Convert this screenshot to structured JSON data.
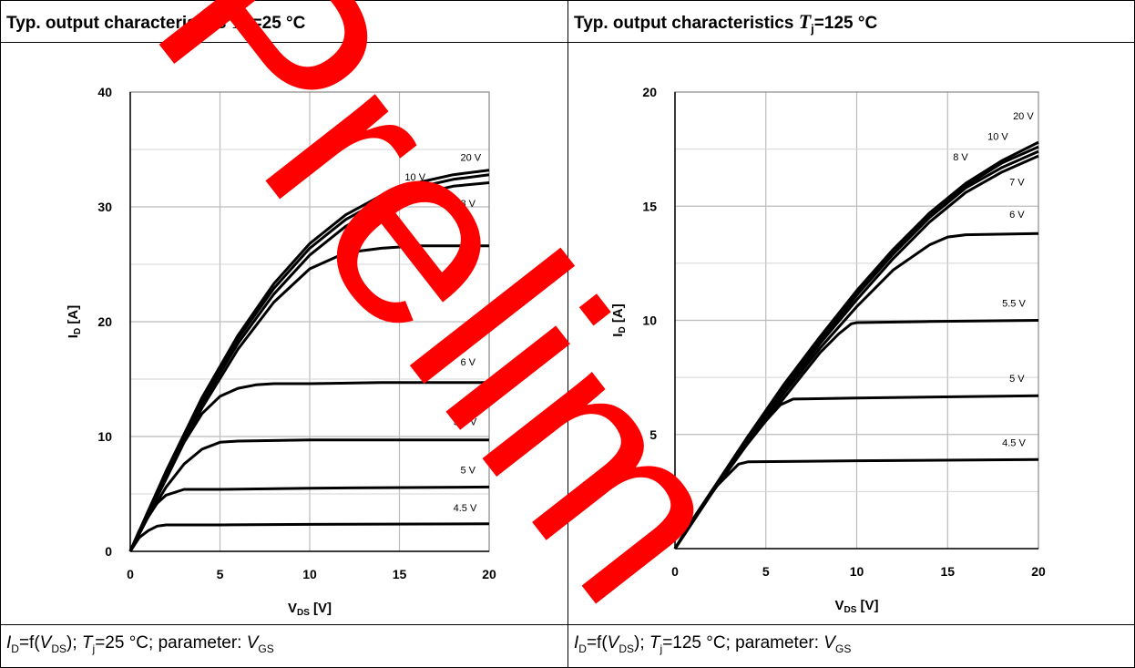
{
  "header": {
    "left": {
      "prefix": "Typ. output characteristics ",
      "sym": "T",
      "sub": "C",
      "suffix": "=25 °C"
    },
    "right": {
      "prefix": "Typ. output characteristics ",
      "sym": "T",
      "sub": "j",
      "suffix": "=125 °C"
    }
  },
  "caption": {
    "left": {
      "i": "I",
      "isub": "D",
      "mid1": "=f(",
      "v": "V",
      "vsub": "DS",
      "mid2": "); ",
      "t": "T",
      "tsub": "j",
      "mid3": "=25 °C; parameter: ",
      "p": "V",
      "psub": "GS"
    },
    "right": {
      "i": "I",
      "isub": "D",
      "mid1": "=f(",
      "v": "V",
      "vsub": "DS",
      "mid2": "); ",
      "t": "T",
      "tsub": "j",
      "mid3": "=125 °C; parameter: ",
      "p": "V",
      "psub": "GS"
    }
  },
  "watermark": {
    "text": "Prelim",
    "color": "#ff0000"
  },
  "chart_data": [
    {
      "type": "line",
      "xlabel": "V",
      "xlabel_sub": "DS",
      "xlabel_unit": " [V]",
      "ylabel": "I",
      "ylabel_sub": "D",
      "ylabel_unit": " [A]",
      "xlim": [
        0,
        20
      ],
      "ylim": [
        0,
        40
      ],
      "xticks": [
        0,
        5,
        10,
        15,
        20
      ],
      "yticks": [
        0,
        10,
        20,
        30,
        40
      ],
      "grid": true,
      "series": [
        {
          "name": "20 V",
          "label_at": [
            18.4,
            34.0
          ],
          "points": [
            [
              0,
              0
            ],
            [
              1,
              3.5
            ],
            [
              2,
              7.0
            ],
            [
              4,
              13.4
            ],
            [
              6,
              18.8
            ],
            [
              8,
              23.3
            ],
            [
              10,
              26.8
            ],
            [
              12,
              29.3
            ],
            [
              14,
              31.0
            ],
            [
              16,
              32.1
            ],
            [
              18,
              32.8
            ],
            [
              20,
              33.2
            ]
          ]
        },
        {
          "name": "10 V",
          "label_at": [
            15.3,
            32.3
          ],
          "points": [
            [
              0,
              0
            ],
            [
              1,
              3.5
            ],
            [
              2,
              6.9
            ],
            [
              4,
              13.2
            ],
            [
              6,
              18.5
            ],
            [
              8,
              22.9
            ],
            [
              10,
              26.4
            ],
            [
              12,
              28.9
            ],
            [
              14,
              30.6
            ],
            [
              16,
              31.7
            ],
            [
              18,
              32.4
            ],
            [
              20,
              32.8
            ]
          ]
        },
        {
          "name": "8 V",
          "label_at": [
            18.4,
            30.0
          ],
          "points": [
            [
              0,
              0
            ],
            [
              1,
              3.5
            ],
            [
              2,
              6.8
            ],
            [
              4,
              12.9
            ],
            [
              6,
              18.1
            ],
            [
              8,
              22.4
            ],
            [
              10,
              25.8
            ],
            [
              12,
              28.3
            ],
            [
              14,
              30.0
            ],
            [
              16,
              31.1
            ],
            [
              18,
              31.8
            ],
            [
              20,
              32.1
            ]
          ]
        },
        {
          "name": "7 V",
          "label_at": [
            18.4,
            27.7
          ],
          "points": [
            [
              0,
              0
            ],
            [
              1,
              3.4
            ],
            [
              2,
              6.6
            ],
            [
              4,
              12.5
            ],
            [
              6,
              17.6
            ],
            [
              8,
              21.7
            ],
            [
              10,
              24.6
            ],
            [
              12,
              26.0
            ],
            [
              14,
              26.4
            ],
            [
              16,
              26.6
            ],
            [
              18,
              26.6
            ],
            [
              20,
              26.6
            ]
          ]
        },
        {
          "name": "6 V",
          "label_at": [
            18.4,
            16.2
          ],
          "points": [
            [
              0,
              0
            ],
            [
              1,
              3.2
            ],
            [
              2,
              6.3
            ],
            [
              3,
              9.5
            ],
            [
              4,
              12.0
            ],
            [
              5,
              13.5
            ],
            [
              6,
              14.2
            ],
            [
              7,
              14.5
            ],
            [
              8,
              14.6
            ],
            [
              10,
              14.6
            ],
            [
              14,
              14.7
            ],
            [
              20,
              14.7
            ]
          ]
        },
        {
          "name": "5.5 V",
          "label_at": [
            18.0,
            11.0
          ],
          "points": [
            [
              0,
              0
            ],
            [
              1,
              3.0
            ],
            [
              2,
              5.6
            ],
            [
              3,
              7.6
            ],
            [
              4,
              8.9
            ],
            [
              5,
              9.5
            ],
            [
              6,
              9.6
            ],
            [
              10,
              9.7
            ],
            [
              20,
              9.7
            ]
          ]
        },
        {
          "name": "5 V",
          "label_at": [
            18.4,
            6.8
          ],
          "points": [
            [
              0,
              0
            ],
            [
              0.5,
              1.8
            ],
            [
              1,
              3.0
            ],
            [
              1.5,
              4.2
            ],
            [
              2,
              4.9
            ],
            [
              3,
              5.4
            ],
            [
              5,
              5.4
            ],
            [
              10,
              5.5
            ],
            [
              20,
              5.6
            ]
          ]
        },
        {
          "name": "4.5 V",
          "label_at": [
            18.0,
            3.5
          ],
          "points": [
            [
              0,
              0
            ],
            [
              0.5,
              1.2
            ],
            [
              1,
              1.8
            ],
            [
              1.5,
              2.2
            ],
            [
              2,
              2.3
            ],
            [
              5,
              2.3
            ],
            [
              10,
              2.35
            ],
            [
              20,
              2.4
            ]
          ]
        }
      ]
    },
    {
      "type": "line",
      "xlabel": "V",
      "xlabel_sub": "DS",
      "xlabel_unit": " [V]",
      "ylabel": "I",
      "ylabel_sub": "D",
      "ylabel_unit": " [A]",
      "xlim": [
        0,
        20
      ],
      "ylim": [
        0,
        20
      ],
      "xticks": [
        0,
        5,
        10,
        15,
        20
      ],
      "yticks": [
        0,
        5,
        10,
        15,
        20
      ],
      "grid": true,
      "series": [
        {
          "name": "20 V",
          "label_at": [
            18.6,
            18.8
          ],
          "points": [
            [
              0,
              0
            ],
            [
              2,
              2.5
            ],
            [
              4,
              4.9
            ],
            [
              6,
              7.2
            ],
            [
              8,
              9.3
            ],
            [
              10,
              11.3
            ],
            [
              12,
              13.1
            ],
            [
              14,
              14.7
            ],
            [
              16,
              16.0
            ],
            [
              18,
              17.0
            ],
            [
              20,
              17.8
            ]
          ]
        },
        {
          "name": "10 V",
          "label_at": [
            17.2,
            17.9
          ],
          "points": [
            [
              0,
              0
            ],
            [
              2,
              2.5
            ],
            [
              4,
              4.9
            ],
            [
              6,
              7.1
            ],
            [
              8,
              9.2
            ],
            [
              10,
              11.2
            ],
            [
              12,
              13.0
            ],
            [
              14,
              14.6
            ],
            [
              16,
              15.9
            ],
            [
              18,
              16.9
            ],
            [
              20,
              17.6
            ]
          ]
        },
        {
          "name": "8 V",
          "label_at": [
            15.3,
            17.0
          ],
          "points": [
            [
              0,
              0
            ],
            [
              2,
              2.5
            ],
            [
              4,
              4.8
            ],
            [
              6,
              7.0
            ],
            [
              8,
              9.1
            ],
            [
              10,
              11.1
            ],
            [
              12,
              12.9
            ],
            [
              14,
              14.5
            ],
            [
              16,
              15.8
            ],
            [
              18,
              16.7
            ],
            [
              20,
              17.4
            ]
          ]
        },
        {
          "name": "7 V",
          "label_at": [
            18.4,
            15.9
          ],
          "points": [
            [
              0,
              0
            ],
            [
              2,
              2.4
            ],
            [
              4,
              4.8
            ],
            [
              6,
              6.9
            ],
            [
              8,
              9.0
            ],
            [
              10,
              10.9
            ],
            [
              12,
              12.7
            ],
            [
              14,
              14.3
            ],
            [
              16,
              15.6
            ],
            [
              18,
              16.5
            ],
            [
              20,
              17.2
            ]
          ]
        },
        {
          "name": "6 V",
          "label_at": [
            18.4,
            14.5
          ],
          "points": [
            [
              0,
              0
            ],
            [
              2,
              2.4
            ],
            [
              4,
              4.7
            ],
            [
              6,
              6.8
            ],
            [
              8,
              8.8
            ],
            [
              10,
              10.6
            ],
            [
              12,
              12.2
            ],
            [
              14,
              13.3
            ],
            [
              15,
              13.65
            ],
            [
              16,
              13.75
            ],
            [
              20,
              13.8
            ]
          ]
        },
        {
          "name": "5.5 V",
          "label_at": [
            18.0,
            10.6
          ],
          "points": [
            [
              0,
              0
            ],
            [
              2,
              2.4
            ],
            [
              4,
              4.6
            ],
            [
              6,
              6.6
            ],
            [
              7,
              7.6
            ],
            [
              8,
              8.6
            ],
            [
              9,
              9.4
            ],
            [
              9.7,
              9.85
            ],
            [
              10,
              9.9
            ],
            [
              14,
              9.95
            ],
            [
              20,
              10.0
            ]
          ]
        },
        {
          "name": "5 V",
          "label_at": [
            18.4,
            7.3
          ],
          "points": [
            [
              0,
              0
            ],
            [
              1,
              1.3
            ],
            [
              2,
              2.5
            ],
            [
              3,
              3.6
            ],
            [
              4,
              4.6
            ],
            [
              5,
              5.6
            ],
            [
              5.8,
              6.3
            ],
            [
              6.5,
              6.55
            ],
            [
              10,
              6.6
            ],
            [
              20,
              6.7
            ]
          ]
        },
        {
          "name": "4.5 V",
          "label_at": [
            18.0,
            4.5
          ],
          "points": [
            [
              0,
              0
            ],
            [
              1,
              1.3
            ],
            [
              2,
              2.5
            ],
            [
              3,
              3.3
            ],
            [
              3.5,
              3.7
            ],
            [
              4,
              3.8
            ],
            [
              10,
              3.85
            ],
            [
              20,
              3.9
            ]
          ]
        }
      ]
    }
  ]
}
